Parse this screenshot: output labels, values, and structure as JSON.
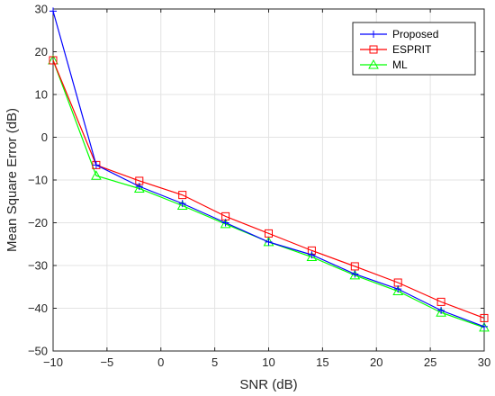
{
  "chart_data": {
    "type": "line",
    "title": "",
    "xlabel": "SNR (dB)",
    "ylabel": "Mean Square Error (dB)",
    "xlim": [
      -10,
      30
    ],
    "ylim": [
      -50,
      30
    ],
    "xticks": [
      -10,
      -5,
      0,
      5,
      10,
      15,
      20,
      25,
      30
    ],
    "yticks": [
      -50,
      -40,
      -30,
      -20,
      -10,
      0,
      10,
      20,
      30
    ],
    "xtick_labels": [
      "−10",
      "−5",
      "0",
      "5",
      "10",
      "15",
      "20",
      "25",
      "30"
    ],
    "ytick_labels": [
      "−50",
      "−40",
      "−30",
      "−20",
      "−10",
      "0",
      "10",
      "20",
      "30"
    ],
    "grid": true,
    "legend_position": "top-right",
    "x": [
      -10,
      -6,
      -2,
      2,
      6,
      10,
      14,
      18,
      22,
      26,
      30
    ],
    "series": [
      {
        "name": "Proposed",
        "color": "#0000ff",
        "marker": "plus",
        "values": [
          29.5,
          -6.5,
          -11.5,
          -15.5,
          -20,
          -24.5,
          -27.5,
          -32,
          -35.5,
          -40.5,
          -44.3
        ]
      },
      {
        "name": "ESPRIT",
        "color": "#ff0000",
        "marker": "square",
        "values": [
          18,
          -6.5,
          -10.2,
          -13.5,
          -18.5,
          -22.5,
          -26.5,
          -30.2,
          -34,
          -38.5,
          -42.3
        ]
      },
      {
        "name": "ML",
        "color": "#00ff00",
        "marker": "triangle",
        "values": [
          18,
          -9,
          -12,
          -16,
          -20.3,
          -24.5,
          -28,
          -32.3,
          -36,
          -41,
          -44.5
        ]
      }
    ]
  }
}
